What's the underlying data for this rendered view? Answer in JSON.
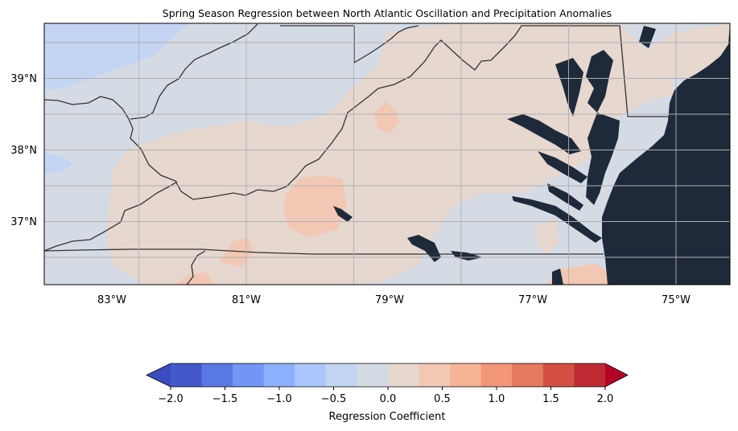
{
  "map": {
    "title": "Spring Season Regression between North Atlantic Oscillation and Precipitation Anomalies",
    "lat_ticks": [
      "39°N",
      "38°N",
      "37°N"
    ],
    "lon_ticks": [
      "83°W",
      "81°W",
      "79°W",
      "77°W",
      "75°W"
    ],
    "extent": {
      "lon_min": -84.0,
      "lon_max": -74.4,
      "lat_min": 36.1,
      "lat_max": 39.75
    },
    "gridlines": true,
    "ocean_color": "#1e2a3a",
    "border_color": "#333333"
  },
  "colorbar": {
    "label": "Regression Coefficient",
    "ticks": [
      "−2.0",
      "−1.5",
      "−1.0",
      "−0.5",
      "0.0",
      "0.5",
      "1.0",
      "1.5",
      "2.0"
    ],
    "range": [
      -2.0,
      2.0
    ],
    "extend": "both",
    "colormap": "coolwarm",
    "bins": [
      "#4358cb",
      "#5a78e4",
      "#7396f5",
      "#8db0fe",
      "#aac7fd",
      "#c4d5f3",
      "#d5dbe5",
      "#e6d7cf",
      "#f2c8b4",
      "#f6b396",
      "#f39778",
      "#e67a5f",
      "#d24f42",
      "#bf2a32"
    ],
    "under_color": "#3b4cc0",
    "over_color": "#b40426"
  }
}
